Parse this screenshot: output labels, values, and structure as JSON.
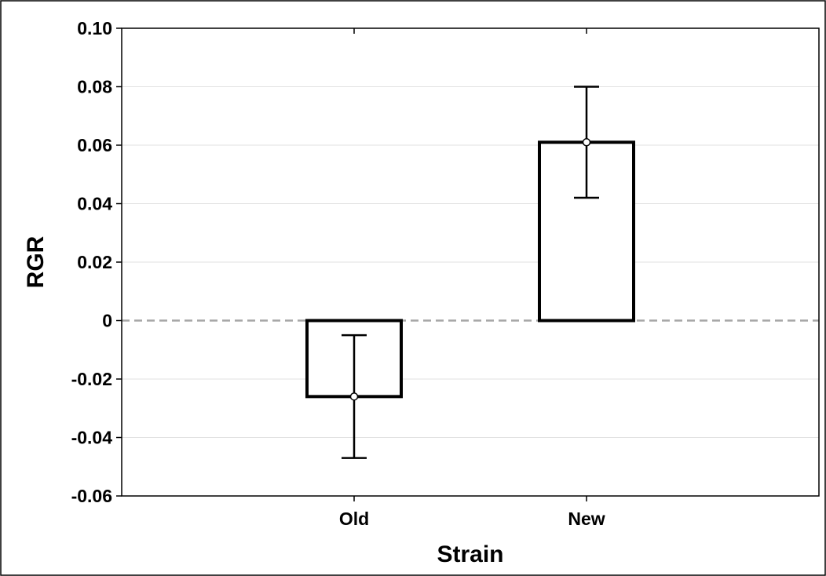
{
  "chart_data": {
    "type": "bar",
    "title": "",
    "xlabel": "Strain",
    "ylabel": "RGR",
    "categories": [
      "Old",
      "New"
    ],
    "values": [
      -0.026,
      0.061
    ],
    "error_low": [
      -0.047,
      0.042
    ],
    "error_high": [
      -0.005,
      0.08
    ],
    "ylim": [
      -0.06,
      0.1
    ],
    "yticks": [
      -0.06,
      -0.04,
      -0.02,
      0,
      0.02,
      0.04,
      0.06,
      0.08,
      0.1
    ],
    "ytick_labels": [
      "-0.06",
      "-0.04",
      "-0.02",
      "0",
      "0.02",
      "0.04",
      "0.06",
      "0.08",
      "0.10"
    ],
    "grid": true,
    "zero_line": "dashed",
    "bar_fill": "#ffffff",
    "bar_edge": "#000000",
    "grid_color": "#e2e2e2",
    "zero_line_color": "#a6a6a6"
  }
}
